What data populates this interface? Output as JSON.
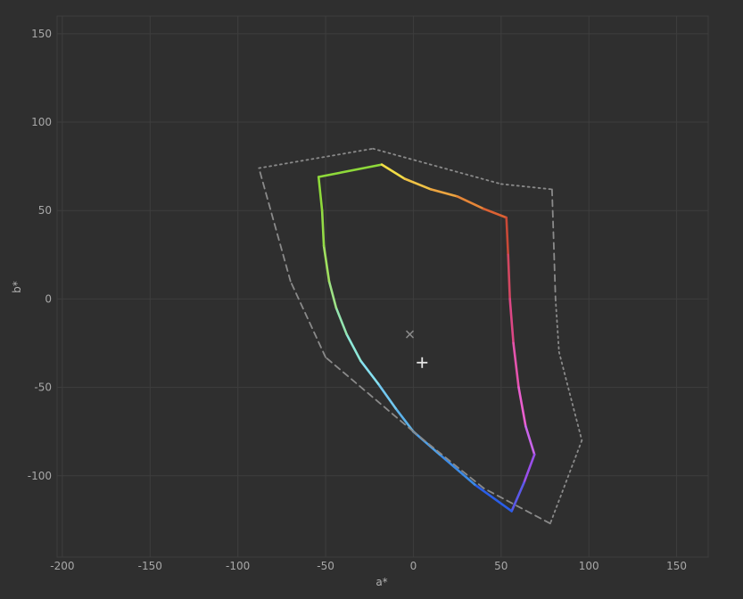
{
  "chart_data": {
    "type": "line",
    "title": "",
    "xlabel": "a*",
    "ylabel": "b*",
    "xlim": [
      -203,
      168
    ],
    "ylim": [
      -146,
      160
    ],
    "x_ticks": [
      -200,
      -150,
      -100,
      -50,
      0,
      50,
      100,
      150
    ],
    "y_ticks": [
      150,
      100,
      50,
      0,
      -50,
      -100
    ],
    "grid": true,
    "colors": {
      "background": "#2f2f2f",
      "grid": "#3e3e3e",
      "reference_line": "#8a8a8a",
      "marker": "#e6e6e6",
      "marker_secondary": "#8a8a8a"
    },
    "series": [
      {
        "style": "gradient-solid",
        "points": [
          [
            -54,
            69
          ],
          [
            -18,
            76
          ],
          [
            -5,
            68
          ],
          [
            10,
            62
          ],
          [
            25,
            58
          ],
          [
            40,
            51
          ],
          [
            53,
            46
          ],
          [
            54,
            25
          ],
          [
            55,
            0
          ],
          [
            57,
            -25
          ],
          [
            60,
            -50
          ],
          [
            64,
            -72
          ],
          [
            69,
            -88
          ],
          [
            63,
            -104
          ],
          [
            56,
            -120
          ],
          [
            35,
            -105
          ],
          [
            15,
            -88
          ],
          [
            0,
            -75
          ],
          [
            -10,
            -62
          ],
          [
            -20,
            -48
          ],
          [
            -30,
            -35
          ],
          [
            -38,
            -20
          ],
          [
            -44,
            -5
          ],
          [
            -48,
            10
          ],
          [
            -51,
            30
          ],
          [
            -52,
            50
          ],
          [
            -54,
            69
          ]
        ],
        "segment_colors": [
          "#8ed93a",
          "#f2dd46",
          "#efc246",
          "#eba440",
          "#e58638",
          "#dc6233",
          "#c94937",
          "#d24761",
          "#dc4785",
          "#e454ad",
          "#ea5fcf",
          "#c865e8",
          "#9a4fea",
          "#5b58e8",
          "#2a5ee8",
          "#3c8be6",
          "#4d9fe8",
          "#5cb2ea",
          "#72c8f0",
          "#86e0f0",
          "#8ee8d8",
          "#94e4b0",
          "#9ee286",
          "#a0e060",
          "#94dc46",
          "#8ed93a"
        ]
      },
      {
        "style": "dashed-dotted",
        "points": [
          [
            -88,
            74
          ],
          [
            -23,
            85
          ],
          [
            50,
            65
          ],
          [
            79,
            62
          ],
          [
            81,
            0
          ],
          [
            83,
            -30
          ],
          [
            96,
            -80
          ],
          [
            78,
            -127
          ],
          [
            40,
            -107
          ],
          [
            0,
            -75
          ],
          [
            -50,
            -33
          ],
          [
            -70,
            10
          ],
          [
            -88,
            74
          ]
        ]
      }
    ],
    "markers": [
      {
        "symbol": "cross",
        "x": 5,
        "y": -36
      },
      {
        "symbol": "x",
        "x": -2,
        "y": -20
      }
    ]
  }
}
